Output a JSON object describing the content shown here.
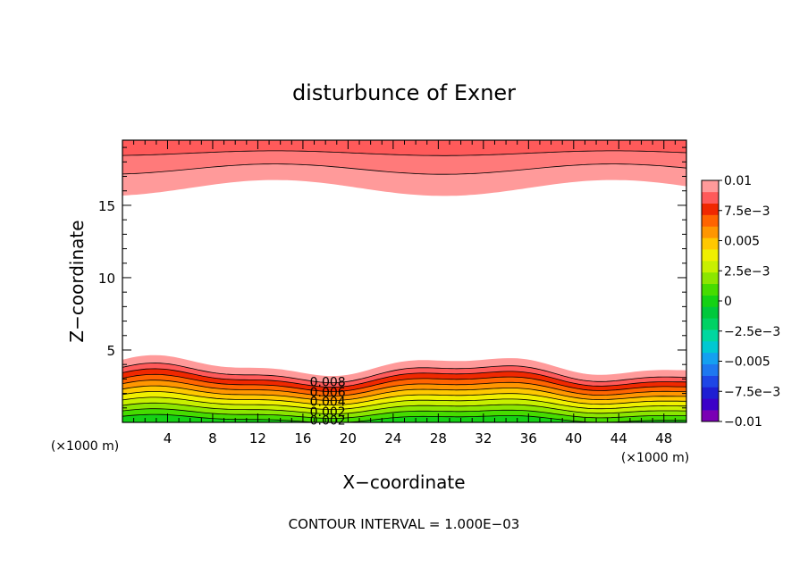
{
  "chart_data": {
    "type": "contour",
    "title": "disturbunce of Exner",
    "xlabel": "X−coordinate",
    "ylabel": "Z−coordinate",
    "x_unit_left": "(×1000 m)",
    "x_unit_right": "(×1000 m)",
    "footer": "CONTOUR INTERVAL = 1.000E−03",
    "xlim": [
      0,
      50
    ],
    "ylim": [
      0,
      19.5
    ],
    "x_ticks": [
      4,
      8,
      12,
      16,
      20,
      24,
      28,
      32,
      36,
      40,
      44,
      48
    ],
    "x_tick_labels": [
      "4",
      "8",
      "12",
      "16",
      "20",
      "24",
      "28",
      "32",
      "36",
      "40",
      "44",
      "48"
    ],
    "y_ticks": [
      5,
      10,
      15
    ],
    "y_tick_labels": [
      "5",
      "10",
      "15"
    ],
    "contour_interval": 0.001,
    "contour_labels": [
      {
        "text": "0.008",
        "x": 18.2,
        "z": 2.8
      },
      {
        "text": "0.006",
        "x": 18.2,
        "z": 2.1
      },
      {
        "text": "0.004",
        "x": 18.2,
        "z": 1.45
      },
      {
        "text": "0.002",
        "x": 18.2,
        "z": 0.75
      },
      {
        "text": "0.002",
        "x": 18.2,
        "z": 0.15
      }
    ],
    "colorbar": {
      "levels": [
        -0.01,
        -0.009,
        -0.008,
        -0.007,
        -0.006,
        -0.005,
        -0.004,
        -0.003,
        -0.002,
        -0.001,
        0,
        0.001,
        0.002,
        0.003,
        0.004,
        0.005,
        0.006,
        0.007,
        0.008,
        0.009,
        0.01
      ],
      "colors": [
        "#7a00b4",
        "#3c00c8",
        "#1e1ed2",
        "#1e46e6",
        "#1e78f0",
        "#14a0f0",
        "#00c8d2",
        "#00d7a0",
        "#00d264",
        "#00c83c",
        "#14d214",
        "#46dc00",
        "#8ce600",
        "#c8f000",
        "#f0f000",
        "#ffc800",
        "#ff9600",
        "#ff6400",
        "#f02800",
        "#ff5a5a",
        "#ff9a9a"
      ],
      "tick_labels": [
        {
          "value": 0.01,
          "label": "0.01"
        },
        {
          "value": 0.0075,
          "label": "7.5e−3"
        },
        {
          "value": 0.005,
          "label": "0.005"
        },
        {
          "value": 0.0025,
          "label": "2.5e−3"
        },
        {
          "value": 0,
          "label": "0"
        },
        {
          "value": -0.0025,
          "label": "−2.5e−3"
        },
        {
          "value": -0.005,
          "label": "−0.005"
        },
        {
          "value": -0.0075,
          "label": "−7.5e−3"
        },
        {
          "value": -0.01,
          "label": "−0.01"
        }
      ]
    },
    "lower_band": {
      "colors_bottom_to_top": [
        "#14d214",
        "#46dc00",
        "#8ce600",
        "#c8f000",
        "#f0f000",
        "#ffc800",
        "#ff9600",
        "#ff6400",
        "#f02800",
        "#ff5a5a",
        "#ff9a9a"
      ],
      "level_heights_km": [
        0.25,
        0.6,
        0.95,
        1.3,
        1.65,
        2.0,
        2.35,
        2.7,
        3.05,
        3.4,
        3.9
      ]
    },
    "upper_band": {
      "colors_bottom_to_top": [
        "#ff9a9a",
        "#ff7a7a",
        "#ff5a5a"
      ],
      "level_heights_km": [
        16.2,
        17.5,
        18.6
      ]
    }
  }
}
